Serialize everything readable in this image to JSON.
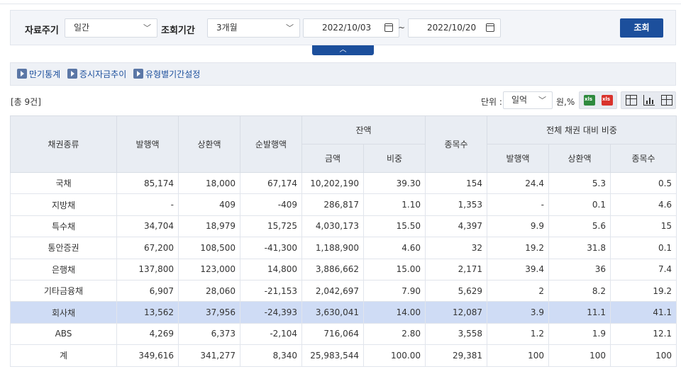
{
  "filter": {
    "period_label": "자료주기",
    "period_value": "일간",
    "range_label": "조회기간",
    "range_value": "3개월",
    "date_from": "2022/10/03",
    "date_sep": "~",
    "date_to": "2022/10/20",
    "search_label": "조회",
    "collapse_icon": "chevron-up"
  },
  "links": [
    {
      "label": "만기통계"
    },
    {
      "label": "증시자금추이"
    },
    {
      "label": "유형별기간설정"
    }
  ],
  "summary": {
    "total": "[총 9건]",
    "unit_label": "단위 :",
    "unit_value": "일억",
    "unit_suffix": "원,%"
  },
  "table": {
    "headers": {
      "type": "채권종류",
      "issue": "발행액",
      "redeem": "상환액",
      "net": "순발행액",
      "balance": "잔액",
      "amount": "금액",
      "ratio": "비중",
      "count": "종목수",
      "share": "전체 채권 대비 비중",
      "share_issue": "발행액",
      "share_redeem": "상환액",
      "share_count": "종목수"
    },
    "rows": [
      [
        "국채",
        "85,174",
        "18,000",
        "67,174",
        "10,202,190",
        "39.30",
        "154",
        "24.4",
        "5.3",
        "0.5"
      ],
      [
        "지방채",
        "-",
        "409",
        "-409",
        "286,817",
        "1.10",
        "1,353",
        "-",
        "0.1",
        "4.6"
      ],
      [
        "특수채",
        "34,704",
        "18,979",
        "15,725",
        "4,030,173",
        "15.50",
        "4,397",
        "9.9",
        "5.6",
        "15"
      ],
      [
        "통안증권",
        "67,200",
        "108,500",
        "-41,300",
        "1,188,900",
        "4.60",
        "32",
        "19.2",
        "31.8",
        "0.1"
      ],
      [
        "은행채",
        "137,800",
        "123,000",
        "14,800",
        "3,886,662",
        "15.00",
        "2,171",
        "39.4",
        "36",
        "7.4"
      ],
      [
        "기타금융채",
        "6,907",
        "28,060",
        "-21,153",
        "2,042,697",
        "7.90",
        "5,629",
        "2",
        "8.2",
        "19.2"
      ],
      [
        "회사채",
        "13,562",
        "37,956",
        "-24,393",
        "3,630,041",
        "14.00",
        "12,087",
        "3.9",
        "11.1",
        "41.1"
      ],
      [
        "ABS",
        "4,269",
        "6,373",
        "-2,104",
        "716,064",
        "2.80",
        "3,558",
        "1.2",
        "1.9",
        "12.1"
      ],
      [
        "계",
        "349,616",
        "341,277",
        "8,340",
        "25,983,544",
        "100.00",
        "29,381",
        "100",
        "100",
        "100"
      ]
    ],
    "highlight_row": 6,
    "highlight_color": "#cfdcf5"
  },
  "colors": {
    "primary": "#1c4f9c",
    "header_bg": "#e9edf3"
  }
}
